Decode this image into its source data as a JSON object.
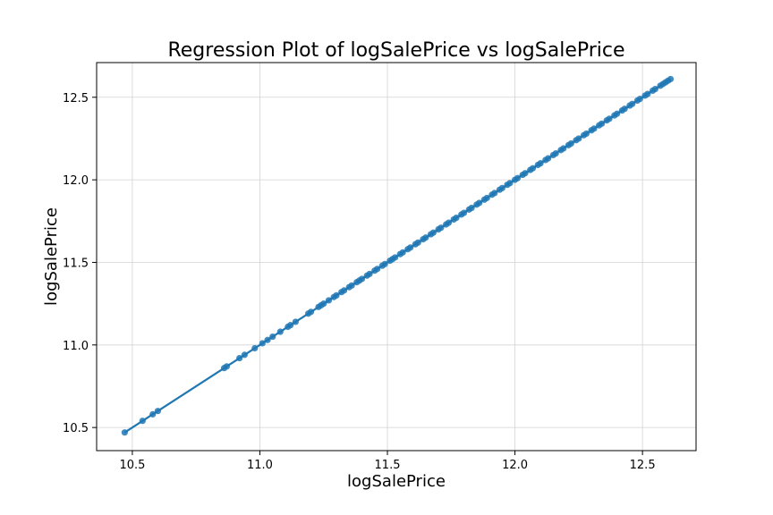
{
  "chart_data": {
    "type": "scatter",
    "title": "Regression Plot of logSalePrice vs logSalePrice",
    "xlabel": "logSalePrice",
    "ylabel": "logSalePrice",
    "xlim": [
      10.36,
      12.71
    ],
    "ylim": [
      10.36,
      12.71
    ],
    "xticks": [
      10.5,
      11.0,
      11.5,
      12.0,
      12.5
    ],
    "yticks": [
      10.5,
      11.0,
      11.5,
      12.0,
      12.5
    ],
    "xtick_labels": [
      "10.5",
      "11.0",
      "11.5",
      "12.0",
      "12.5"
    ],
    "ytick_labels": [
      "10.5",
      "11.0",
      "11.5",
      "12.0",
      "12.5"
    ],
    "grid": true,
    "legend": "none",
    "point_color": "#1f77b4",
    "line_color": "#1f77b4",
    "regression_line": {
      "slope": 1.0,
      "intercept": 0.0,
      "x_range": [
        10.47,
        12.61
      ]
    },
    "series": [
      {
        "x": [
          10.47,
          10.54,
          10.58,
          10.6,
          10.86,
          10.87,
          10.92,
          10.94,
          10.98,
          11.01,
          11.03,
          11.05,
          11.08,
          11.11,
          11.12,
          11.14,
          11.19,
          11.2,
          11.23,
          11.24,
          11.25,
          11.27,
          11.29,
          11.3,
          11.32,
          11.33,
          11.35,
          11.36,
          11.38,
          11.39,
          11.4,
          11.42,
          11.43,
          11.45,
          11.46,
          11.48,
          11.49,
          11.51,
          11.52,
          11.53,
          11.55,
          11.56,
          11.58,
          11.59,
          11.61,
          11.62,
          11.64,
          11.65,
          11.67,
          11.68,
          11.7,
          11.71,
          11.73,
          11.74,
          11.76,
          11.77,
          11.79,
          11.8,
          11.82,
          11.83,
          11.85,
          11.86,
          11.88,
          11.89,
          11.91,
          11.92,
          11.94,
          11.95,
          11.97,
          11.98,
          12.0,
          12.01,
          12.03,
          12.04,
          12.06,
          12.07,
          12.09,
          12.1,
          12.12,
          12.13,
          12.15,
          12.16,
          12.18,
          12.19,
          12.21,
          12.22,
          12.24,
          12.25,
          12.27,
          12.28,
          12.3,
          12.31,
          12.33,
          12.34,
          12.36,
          12.37,
          12.39,
          12.4,
          12.42,
          12.43,
          12.45,
          12.46,
          12.48,
          12.49,
          12.51,
          12.52,
          12.54,
          12.55,
          12.57,
          12.58,
          12.59,
          12.6,
          12.61
        ],
        "y": [
          10.47,
          10.54,
          10.58,
          10.6,
          10.86,
          10.87,
          10.92,
          10.94,
          10.98,
          11.01,
          11.03,
          11.05,
          11.08,
          11.11,
          11.12,
          11.14,
          11.19,
          11.2,
          11.23,
          11.24,
          11.25,
          11.27,
          11.29,
          11.3,
          11.32,
          11.33,
          11.35,
          11.36,
          11.38,
          11.39,
          11.4,
          11.42,
          11.43,
          11.45,
          11.46,
          11.48,
          11.49,
          11.51,
          11.52,
          11.53,
          11.55,
          11.56,
          11.58,
          11.59,
          11.61,
          11.62,
          11.64,
          11.65,
          11.67,
          11.68,
          11.7,
          11.71,
          11.73,
          11.74,
          11.76,
          11.77,
          11.79,
          11.8,
          11.82,
          11.83,
          11.85,
          11.86,
          11.88,
          11.89,
          11.91,
          11.92,
          11.94,
          11.95,
          11.97,
          11.98,
          12.0,
          12.01,
          12.03,
          12.04,
          12.06,
          12.07,
          12.09,
          12.1,
          12.12,
          12.13,
          12.15,
          12.16,
          12.18,
          12.19,
          12.21,
          12.22,
          12.24,
          12.25,
          12.27,
          12.28,
          12.3,
          12.31,
          12.33,
          12.34,
          12.36,
          12.37,
          12.39,
          12.4,
          12.42,
          12.43,
          12.45,
          12.46,
          12.48,
          12.49,
          12.51,
          12.52,
          12.54,
          12.55,
          12.57,
          12.58,
          12.59,
          12.6,
          12.61
        ]
      }
    ]
  }
}
